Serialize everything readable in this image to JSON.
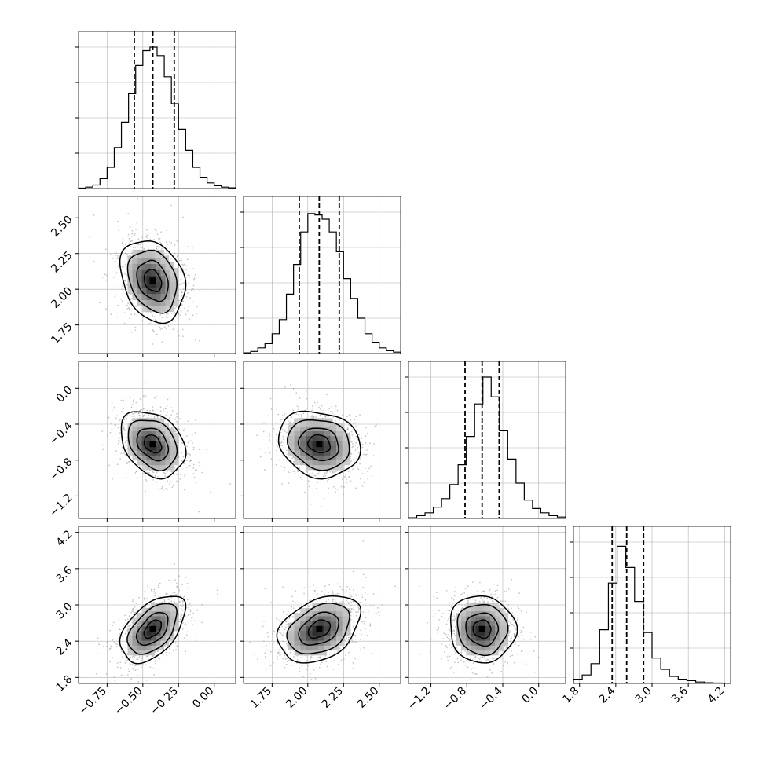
{
  "chart_data": {
    "type": "corner",
    "parameters": [
      {
        "ticks": [
          "-0.75",
          "-0.50",
          "-0.25",
          "0.00"
        ],
        "range": [
          -0.95,
          0.15
        ],
        "quantiles": [
          -0.56,
          -0.43,
          -0.28
        ],
        "hist": [
          0.003,
          0.01,
          0.025,
          0.07,
          0.15,
          0.29,
          0.47,
          0.67,
          0.87,
          0.975,
          1.0,
          0.94,
          0.79,
          0.6,
          0.42,
          0.27,
          0.15,
          0.08,
          0.04,
          0.02,
          0.01,
          0.005
        ]
      },
      {
        "ticks": [
          "1.75",
          "2.00",
          "2.25",
          "2.50"
        ],
        "range": [
          1.55,
          2.65
        ],
        "quantiles": [
          1.94,
          2.08,
          2.22
        ],
        "hist": [
          0.005,
          0.015,
          0.04,
          0.07,
          0.14,
          0.24,
          0.42,
          0.63,
          0.86,
          0.99,
          0.98,
          0.95,
          0.86,
          0.72,
          0.53,
          0.39,
          0.25,
          0.14,
          0.08,
          0.04,
          0.02,
          0.01
        ]
      },
      {
        "ticks": [
          "-1.2",
          "-0.8",
          "-0.4",
          "0.0"
        ],
        "range": [
          -1.45,
          0.3
        ],
        "quantiles": [
          -0.82,
          -0.63,
          -0.44
        ],
        "hist": [
          0.005,
          0.02,
          0.04,
          0.08,
          0.14,
          0.24,
          0.38,
          0.58,
          0.81,
          1.0,
          0.86,
          0.62,
          0.42,
          0.25,
          0.13,
          0.07,
          0.04,
          0.02,
          0.01
        ]
      },
      {
        "ticks": [
          "1.8",
          "2.4",
          "3.0",
          "3.6",
          "4.2"
        ],
        "range": [
          1.7,
          4.3
        ],
        "quantiles": [
          2.34,
          2.58,
          2.86
        ],
        "hist": [
          0.03,
          0.06,
          0.14,
          0.38,
          0.71,
          0.97,
          0.82,
          0.58,
          0.36,
          0.18,
          0.1,
          0.05,
          0.03,
          0.02,
          0.01,
          0.005,
          0.003,
          0.001
        ]
      }
    ],
    "pairs": [
      {
        "row": 1,
        "col": 0,
        "mean": [
          -0.43,
          2.06
        ],
        "sd": [
          0.11,
          0.14
        ],
        "corr": -0.25
      },
      {
        "row": 2,
        "col": 0,
        "mean": [
          -0.43,
          -0.62
        ],
        "sd": [
          0.11,
          0.18
        ],
        "corr": -0.3
      },
      {
        "row": 2,
        "col": 1,
        "mean": [
          2.08,
          -0.62
        ],
        "sd": [
          0.14,
          0.18
        ],
        "corr": -0.15
      },
      {
        "row": 3,
        "col": 0,
        "mean": [
          -0.43,
          2.6
        ],
        "sd": [
          0.11,
          0.27
        ],
        "corr": 0.5
      },
      {
        "row": 3,
        "col": 1,
        "mean": [
          2.08,
          2.6
        ],
        "sd": [
          0.14,
          0.27
        ],
        "corr": 0.35
      },
      {
        "row": 3,
        "col": 2,
        "mean": [
          -0.63,
          2.6
        ],
        "sd": [
          0.18,
          0.27
        ],
        "corr": -0.05
      }
    ],
    "grid": true,
    "colors": {
      "line": "#000000",
      "grid": "#b0b0b0",
      "points": "#9a9a9a"
    }
  }
}
